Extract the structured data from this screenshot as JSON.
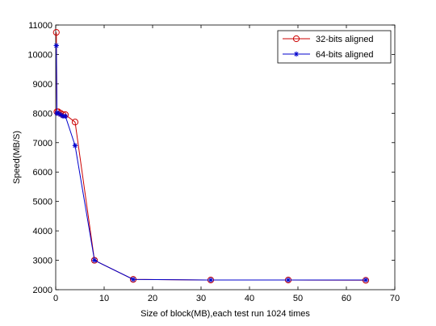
{
  "chart_data": {
    "type": "line",
    "xlabel": "Size of block(MB),each test run 1024 times",
    "ylabel": "Speed(MB/S)",
    "xlim": [
      0,
      70
    ],
    "ylim": [
      2000,
      11000
    ],
    "x_ticks": [
      0,
      10,
      20,
      30,
      40,
      50,
      60,
      70
    ],
    "y_ticks": [
      2000,
      3000,
      4000,
      5000,
      6000,
      7000,
      8000,
      9000,
      10000,
      11000
    ],
    "grid": false,
    "legend_position": "top-right",
    "series": [
      {
        "name": "32-bits aligned",
        "color": "#cc0000",
        "marker": "circle",
        "x": [
          0.125,
          0.25,
          0.5,
          1,
          1.5,
          2,
          4,
          8,
          16,
          32,
          48,
          64
        ],
        "y": [
          10750,
          8050,
          8050,
          8000,
          7950,
          7950,
          7700,
          3000,
          2350,
          2330,
          2330,
          2320
        ]
      },
      {
        "name": "64-bits aligned",
        "color": "#0000cc",
        "marker": "star",
        "x": [
          0.125,
          0.25,
          0.5,
          1,
          1.5,
          2,
          4,
          8,
          16,
          32,
          48,
          64
        ],
        "y": [
          10300,
          8000,
          8000,
          7950,
          7900,
          7900,
          6900,
          3000,
          2350,
          2330,
          2330,
          2330
        ]
      }
    ]
  }
}
